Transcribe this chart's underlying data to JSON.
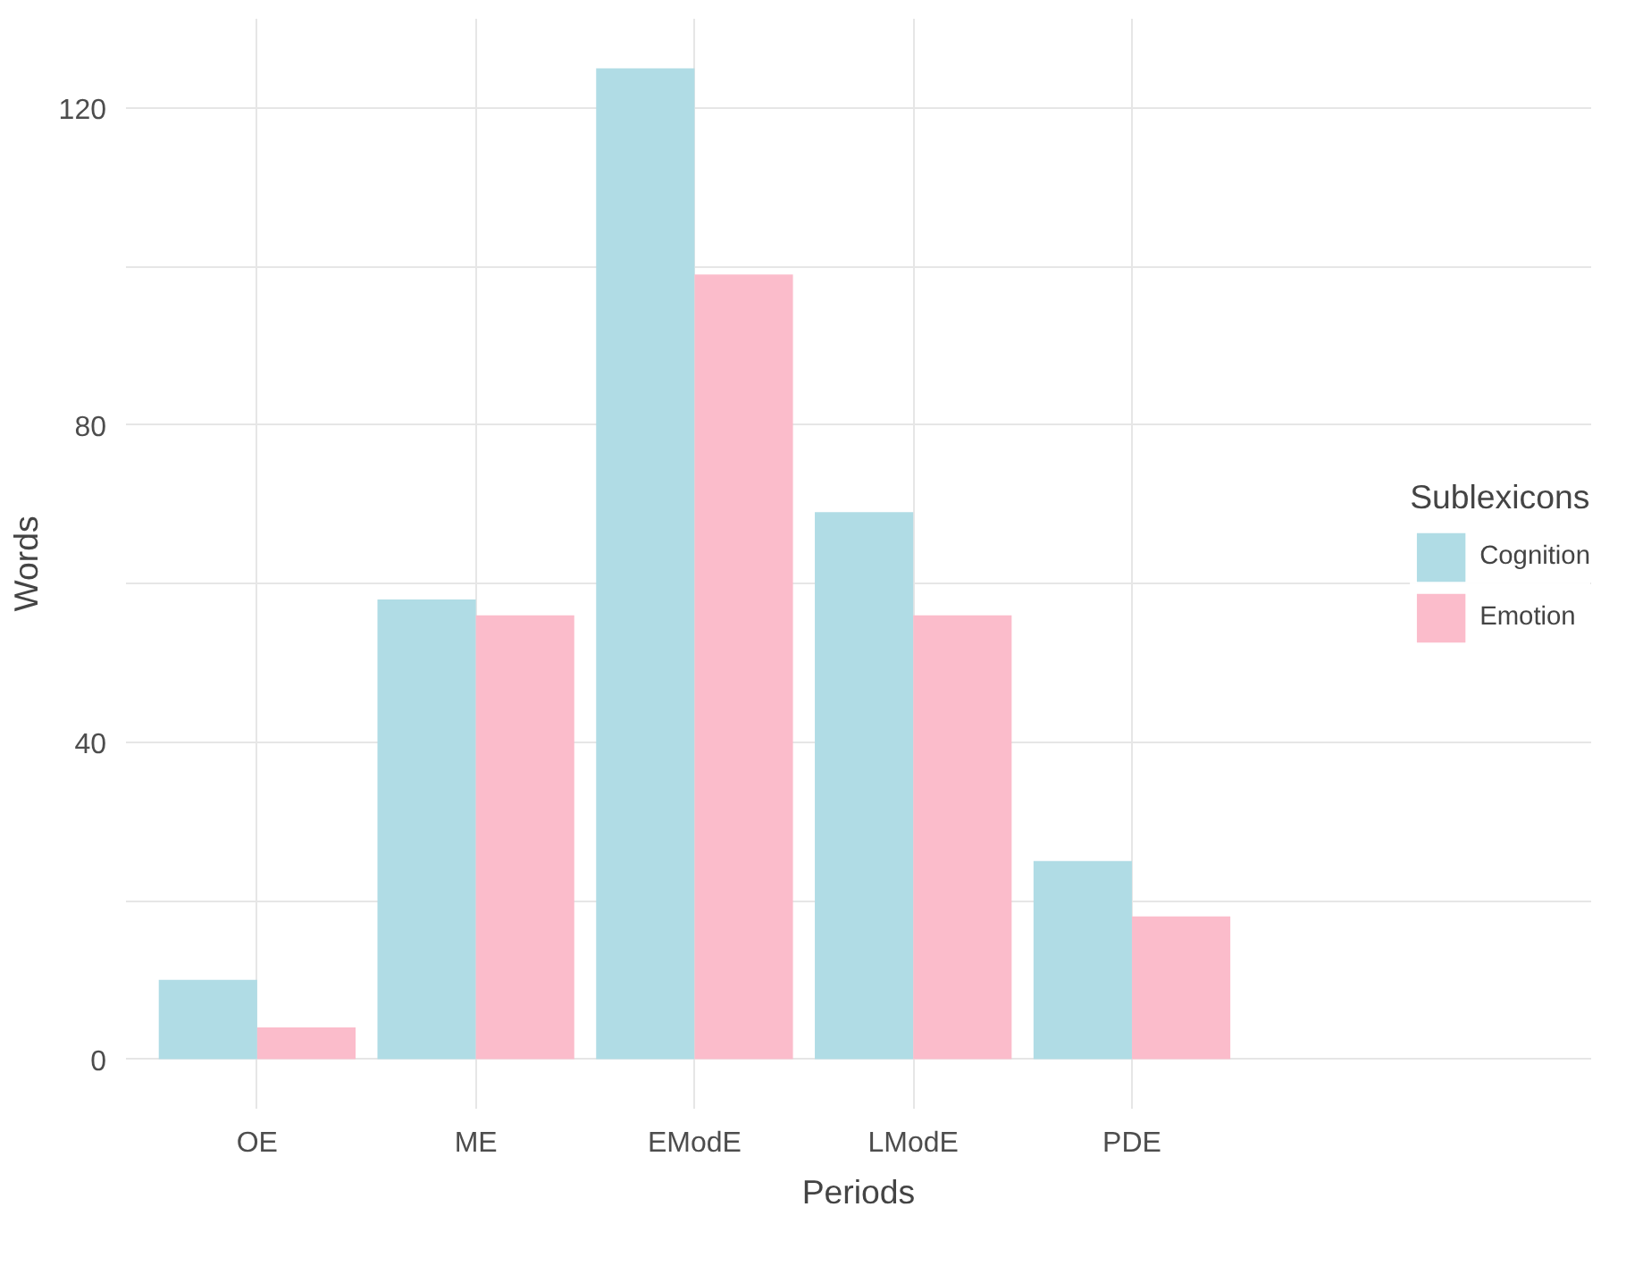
{
  "chart_data": {
    "type": "bar",
    "xlabel": "Periods",
    "ylabel": "Words",
    "legend_title": "Sublexicons",
    "categories": [
      "OE",
      "ME",
      "EModE",
      "LModE",
      "PDE"
    ],
    "series": [
      {
        "name": "Cognition",
        "color": "#b0dce5",
        "values": [
          10,
          58,
          125,
          69,
          25
        ]
      },
      {
        "name": "Emotion",
        "color": "#fbbccb",
        "values": [
          4,
          56,
          99,
          56,
          18
        ]
      }
    ],
    "ylim": [
      -6.25,
      131.25
    ],
    "yticks": [
      0,
      {
        "value": 20,
        "label": null
      },
      40,
      {
        "value": 60,
        "label": null
      },
      80,
      {
        "value": 100,
        "label": null
      },
      120
    ],
    "grid": true,
    "legend": "right"
  }
}
